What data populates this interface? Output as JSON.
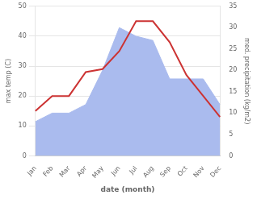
{
  "chart_data": {
    "type": "line",
    "xlabel": "date (month)",
    "ylabel": "max temp (C)",
    "y2label": "med. precipitation (kg/m2)",
    "categories": [
      "Jan",
      "Feb",
      "Mar",
      "Apr",
      "May",
      "Jun",
      "Jul",
      "Aug",
      "Sep",
      "Oct",
      "Nov",
      "Dec"
    ],
    "series": [
      {
        "type": "area",
        "color": "#aabbee",
        "axis": "y2",
        "values": [
          8,
          10,
          10,
          12,
          20,
          30,
          28,
          27,
          18,
          18,
          18,
          12
        ]
      },
      {
        "type": "line",
        "color": "#cc3333",
        "values": [
          15,
          20,
          20,
          28,
          29,
          35,
          45,
          45,
          38,
          27,
          20,
          13
        ]
      }
    ],
    "ylim": [
      0,
      50
    ],
    "yticks": [
      0,
      10,
      20,
      30,
      40,
      50
    ],
    "y2lim": [
      0,
      35
    ],
    "y2ticks": [
      0,
      5,
      10,
      15,
      20,
      25,
      30,
      35
    ],
    "grid": true
  }
}
